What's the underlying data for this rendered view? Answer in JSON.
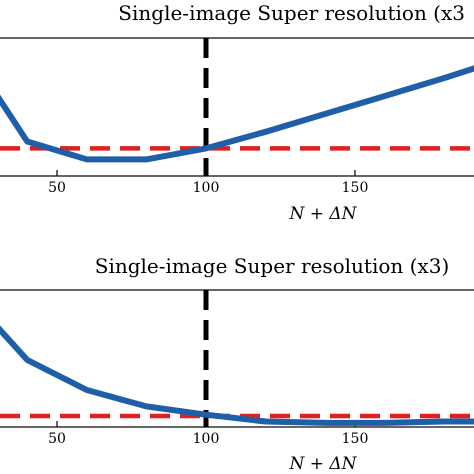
{
  "chart_data": [
    {
      "type": "line",
      "title": "Single-image Super resolution (x3",
      "xlabel": "N + ΔN",
      "ylabel": "",
      "xlim": [
        30,
        190
      ],
      "ylim": [
        0,
        1
      ],
      "xticks": [
        50,
        100,
        150
      ],
      "tick_labels": [
        "50",
        "100",
        "150"
      ],
      "grid": false,
      "series": [
        {
          "x": [
            30,
            40,
            60,
            80,
            100,
            120,
            140,
            160,
            180,
            190
          ],
          "y": [
            0.58,
            0.25,
            0.12,
            0.12,
            0.2,
            0.32,
            0.45,
            0.58,
            0.71,
            0.78
          ],
          "color": "#1f5fa8",
          "style": "solid"
        }
      ],
      "reference_lines": [
        {
          "orientation": "horizontal",
          "y": 0.2,
          "color": "#e02020",
          "style": "dashed"
        },
        {
          "orientation": "vertical",
          "x": 100,
          "color": "#000000",
          "style": "dashed"
        }
      ]
    },
    {
      "type": "line",
      "title": "Single-image Super resolution (x3)",
      "xlabel": "N + ΔN",
      "ylabel": "",
      "xlim": [
        30,
        190
      ],
      "ylim": [
        0,
        1
      ],
      "xticks": [
        50,
        100,
        150
      ],
      "tick_labels": [
        "50",
        "100",
        "150"
      ],
      "grid": false,
      "series": [
        {
          "x": [
            30,
            40,
            60,
            80,
            100,
            120,
            140,
            160,
            180,
            190
          ],
          "y": [
            0.73,
            0.49,
            0.27,
            0.15,
            0.09,
            0.04,
            0.03,
            0.03,
            0.04,
            0.04
          ],
          "color": "#1f5fa8",
          "style": "solid"
        }
      ],
      "reference_lines": [
        {
          "orientation": "horizontal",
          "y": 0.08,
          "color": "#e02020",
          "style": "dashed"
        },
        {
          "orientation": "vertical",
          "x": 100,
          "color": "#000000",
          "style": "dashed"
        }
      ]
    }
  ]
}
